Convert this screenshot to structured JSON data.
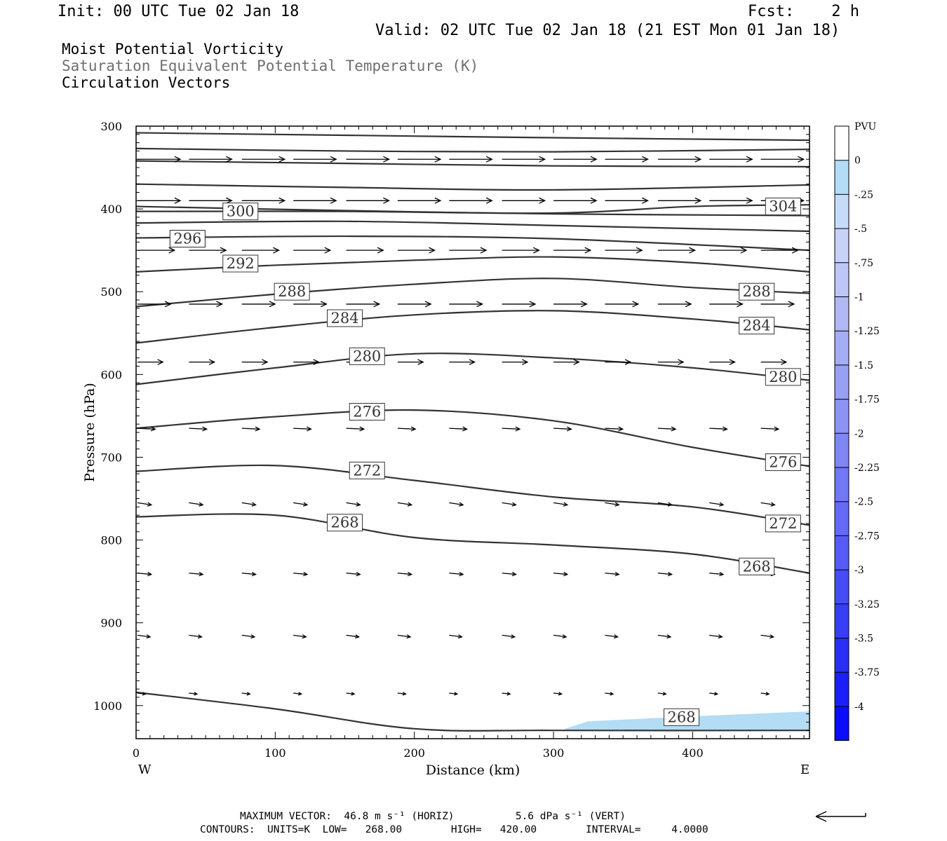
{
  "header": {
    "init": "Init: 00 UTC Tue 02 Jan 18",
    "fcst": "Fcst:    2 h",
    "valid": "Valid: 02 UTC Tue 02 Jan 18 (21 EST Mon 01 Jan 18)"
  },
  "titles": {
    "line1": "Moist Potential Vorticity",
    "line2": "Saturation Equivalent Potential Temperature (K)",
    "line3": "Circulation Vectors"
  },
  "colors": {
    "contour": "#333333",
    "pv_fill": "#b3dcf5",
    "arrow": "#000000"
  },
  "chart_data": {
    "type": "contour-cross-section",
    "xlabel": "Distance (km)",
    "ylabel": "Pressure (hPa)",
    "xlim": [
      0,
      484
    ],
    "ylim": [
      1040,
      300
    ],
    "x_ticks": [
      0,
      100,
      200,
      300,
      400
    ],
    "y_ticks": [
      300,
      400,
      500,
      600,
      700,
      800,
      900,
      1000
    ],
    "x_end_labels": {
      "left": "W",
      "right": "E"
    },
    "colorbar": {
      "label": "PVU",
      "levels": [
        {
          "label": "0",
          "color": "#ffffff"
        },
        {
          "label": "-.25",
          "color": "#b3dcf5"
        },
        {
          "label": "-.5",
          "color": "#c4dcf8"
        },
        {
          "label": "-.75",
          "color": "#c8d2f8"
        },
        {
          "label": "-1",
          "color": "#bcc6f7"
        },
        {
          "label": "-1.25",
          "color": "#b0b9f6"
        },
        {
          "label": "-1.5",
          "color": "#a4adf5"
        },
        {
          "label": "-1.75",
          "color": "#98a0f4"
        },
        {
          "label": "-2",
          "color": "#8b93f3"
        },
        {
          "label": "-2.25",
          "color": "#7e86f3"
        },
        {
          "label": "-2.5",
          "color": "#7178f3"
        },
        {
          "label": "-2.75",
          "color": "#636af3"
        },
        {
          "label": "-3",
          "color": "#555cf3"
        },
        {
          "label": "-3.25",
          "color": "#464df4"
        },
        {
          "label": "-3.5",
          "color": "#373ef5"
        },
        {
          "label": "-3.75",
          "color": "#2a2ff6"
        },
        {
          "label": "-4",
          "color": "#1c20f8"
        },
        {
          "label": "",
          "color": "#0a0cfb"
        }
      ]
    },
    "contours": [
      {
        "label": null,
        "points": [
          [
            0,
            308
          ],
          [
            150,
            311
          ],
          [
            300,
            314
          ],
          [
            484,
            317
          ]
        ]
      },
      {
        "label": null,
        "points": [
          [
            0,
            327
          ],
          [
            150,
            330
          ],
          [
            300,
            331
          ],
          [
            484,
            328
          ]
        ]
      },
      {
        "label": null,
        "points": [
          [
            0,
            342
          ],
          [
            150,
            345
          ],
          [
            300,
            348
          ],
          [
            484,
            349
          ]
        ]
      },
      {
        "label": null,
        "points": [
          [
            0,
            370
          ],
          [
            150,
            374
          ],
          [
            300,
            377
          ],
          [
            484,
            371
          ]
        ]
      },
      {
        "label": "300",
        "label_at": [
          75,
          403
        ],
        "points": [
          [
            0,
            397
          ],
          [
            150,
            402
          ],
          [
            300,
            406
          ],
          [
            484,
            408
          ]
        ]
      },
      {
        "label": "304",
        "label_at": [
          465,
          397
        ],
        "points": [
          [
            0,
            403
          ],
          [
            150,
            403
          ],
          [
            300,
            405
          ],
          [
            400,
            397
          ],
          [
            484,
            395
          ]
        ]
      },
      {
        "label": null,
        "points": [
          [
            0,
            417
          ],
          [
            150,
            415
          ],
          [
            300,
            420
          ],
          [
            484,
            427
          ]
        ]
      },
      {
        "label": "296",
        "label_at": [
          37,
          436
        ],
        "points": [
          [
            0,
            435
          ],
          [
            150,
            433
          ],
          [
            300,
            436
          ],
          [
            484,
            450
          ]
        ]
      },
      {
        "label": "292",
        "label_at": [
          75,
          466
        ],
        "points": [
          [
            0,
            476
          ],
          [
            100,
            468
          ],
          [
            200,
            462
          ],
          [
            300,
            458
          ],
          [
            400,
            465
          ],
          [
            484,
            476
          ]
        ]
      },
      {
        "label": "288",
        "label_at": [
          446,
          500
        ],
        "extra_label": [
          112,
          500
        ],
        "points": [
          [
            0,
            518
          ],
          [
            100,
            503
          ],
          [
            200,
            491
          ],
          [
            300,
            484
          ],
          [
            400,
            495
          ],
          [
            484,
            502
          ]
        ]
      },
      {
        "label": "284",
        "label_at": [
          446,
          541
        ],
        "extra_label": [
          150,
          532
        ],
        "points": [
          [
            0,
            562
          ],
          [
            100,
            543
          ],
          [
            200,
            528
          ],
          [
            300,
            523
          ],
          [
            400,
            533
          ],
          [
            484,
            546
          ]
        ]
      },
      {
        "label": "280",
        "label_at": [
          465,
          603
        ],
        "extra_label": [
          166,
          578
        ],
        "points": [
          [
            0,
            612
          ],
          [
            100,
            592
          ],
          [
            200,
            575
          ],
          [
            300,
            580
          ],
          [
            400,
            592
          ],
          [
            484,
            607
          ]
        ]
      },
      {
        "label": "276",
        "label_at": [
          465,
          706
        ],
        "extra_label": [
          166,
          645
        ],
        "points": [
          [
            0,
            665
          ],
          [
            100,
            651
          ],
          [
            200,
            643
          ],
          [
            300,
            656
          ],
          [
            400,
            688
          ],
          [
            484,
            711
          ]
        ]
      },
      {
        "label": "272",
        "label_at": [
          465,
          780
        ],
        "extra_label": [
          166,
          716
        ],
        "points": [
          [
            0,
            717
          ],
          [
            100,
            710
          ],
          [
            200,
            728
          ],
          [
            300,
            748
          ],
          [
            400,
            760
          ],
          [
            484,
            782
          ]
        ]
      },
      {
        "label": "268",
        "label_at": [
          446,
          832
        ],
        "extra_label": [
          150,
          779
        ],
        "points": [
          [
            0,
            772
          ],
          [
            100,
            770
          ],
          [
            200,
            797
          ],
          [
            300,
            806
          ],
          [
            400,
            817
          ],
          [
            484,
            840
          ]
        ]
      },
      {
        "label": "268",
        "label_at": [
          392,
          1014
        ],
        "points": [
          [
            0,
            984
          ],
          [
            100,
            1004
          ],
          [
            200,
            1028
          ],
          [
            300,
            1030
          ],
          [
            484,
            1030
          ]
        ]
      }
    ],
    "pv_region": [
      [
        308,
        1028
      ],
      [
        325,
        1019
      ],
      [
        400,
        1013
      ],
      [
        484,
        1007
      ],
      [
        484,
        1030
      ],
      [
        308,
        1030
      ]
    ],
    "vector_rows": [
      {
        "p": 340,
        "u": 1.0,
        "w": 0.0
      },
      {
        "p": 390,
        "u": 1.0,
        "w": 0.0
      },
      {
        "p": 450,
        "u": 0.85,
        "w": 0.0
      },
      {
        "p": 515,
        "u": 0.75,
        "w": 0.0
      },
      {
        "p": 585,
        "u": 0.55,
        "w": 0.0
      },
      {
        "p": 665,
        "u": 0.35,
        "w": 0.02
      },
      {
        "p": 755,
        "u": 0.25,
        "w": 0.05
      },
      {
        "p": 840,
        "u": 0.25,
        "w": 0.03
      },
      {
        "p": 915,
        "u": 0.22,
        "w": 0.04
      },
      {
        "p": 985,
        "u": 0.1,
        "w": 0.02
      }
    ]
  },
  "footer": {
    "line1": "MAXIMUM VECTOR:  46.8 m s⁻¹ (HORIZ)          5.6 dPa s⁻¹ (VERT)",
    "line2": "CONTOURS:  UNITS=K  LOW=   268.00        HIGH=   420.00        INTERVAL=     4.0000"
  }
}
